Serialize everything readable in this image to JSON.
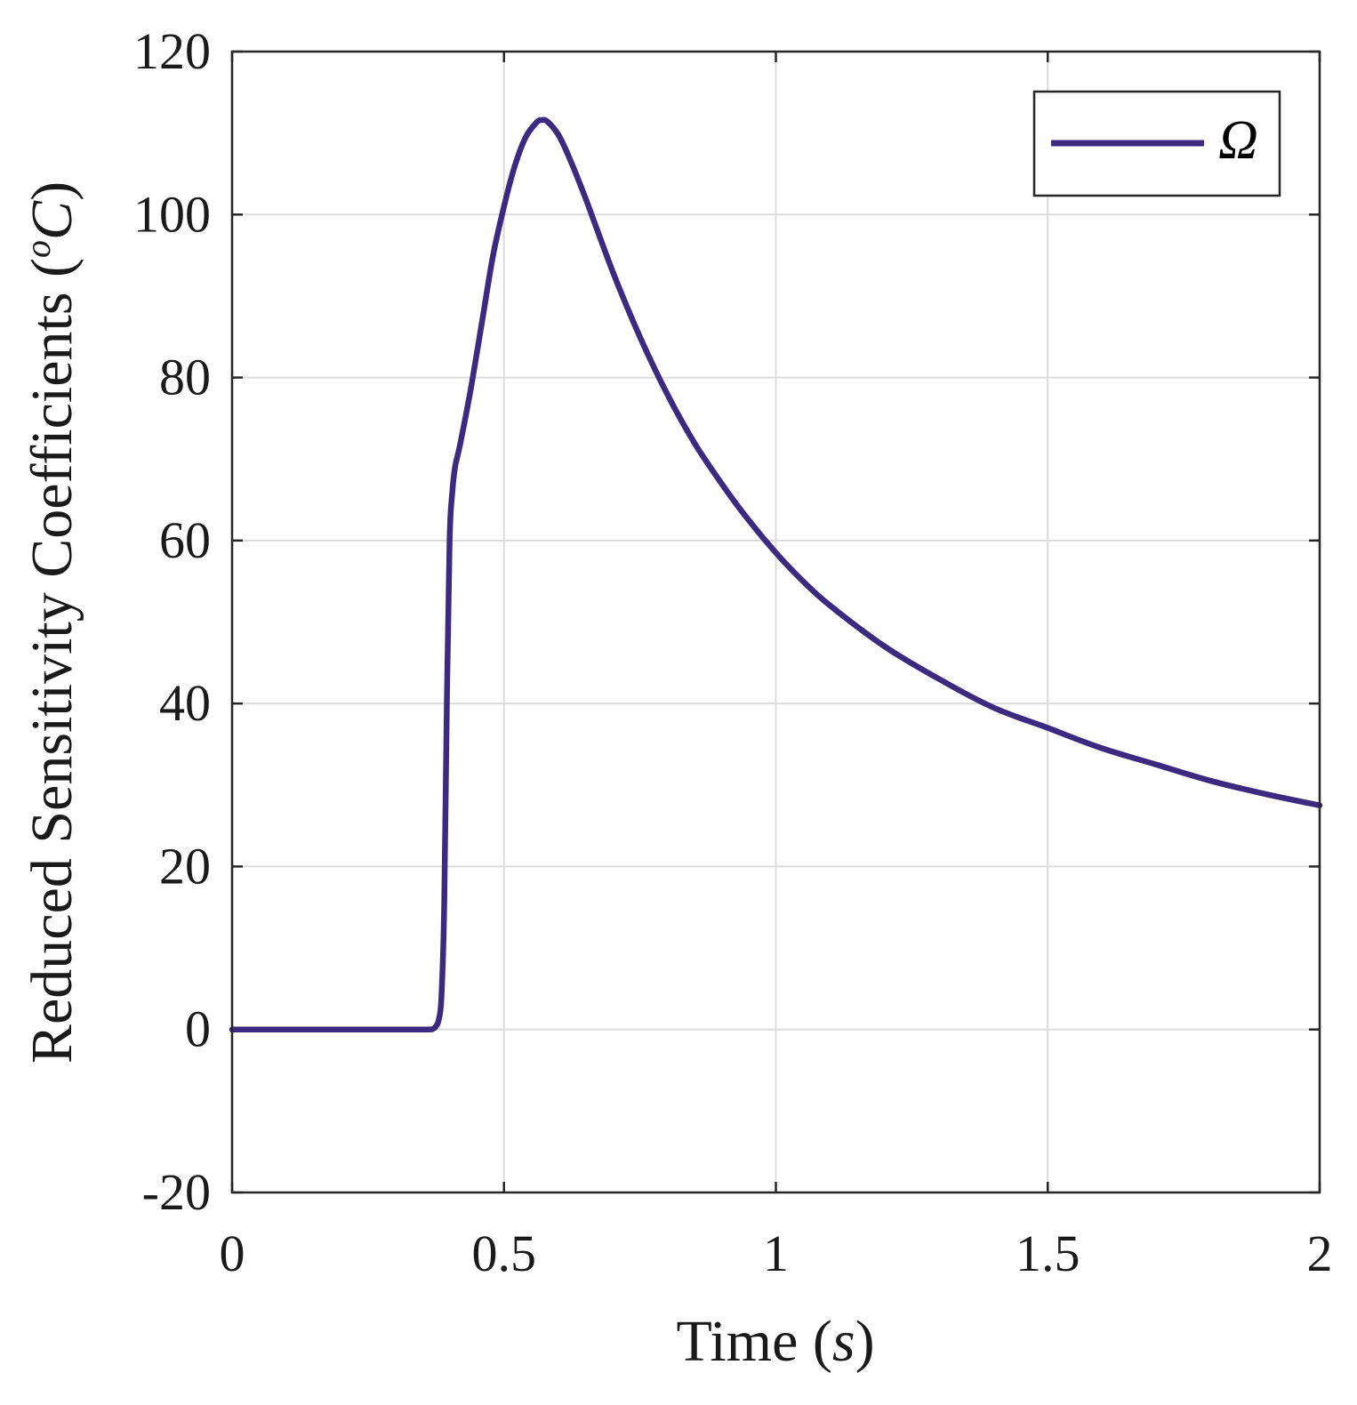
{
  "chart_data": {
    "type": "line",
    "title": "",
    "xlabel": "Time",
    "xlabel_unit": "s",
    "ylabel": "Reduced Sensitivity Coefficients",
    "ylabel_unit_degree": "o",
    "ylabel_unit_letter": "C",
    "xlim": [
      0,
      2
    ],
    "ylim": [
      -20,
      120
    ],
    "x_ticks": [
      0,
      0.5,
      1,
      1.5,
      2
    ],
    "x_tick_labels": [
      "0",
      "0.5",
      "1",
      "1.5",
      "2"
    ],
    "y_ticks": [
      -20,
      0,
      20,
      40,
      60,
      80,
      100,
      120
    ],
    "y_tick_labels": [
      "-20",
      "0",
      "20",
      "40",
      "60",
      "80",
      "100",
      "120"
    ],
    "grid": true,
    "legend_position": "top-right",
    "series": [
      {
        "name": "Ω",
        "color": "#3b2a80",
        "x": [
          0,
          0.1,
          0.2,
          0.3,
          0.36,
          0.37,
          0.375,
          0.38,
          0.385,
          0.39,
          0.395,
          0.4,
          0.405,
          0.41,
          0.42,
          0.44,
          0.46,
          0.48,
          0.5,
          0.52,
          0.54,
          0.56,
          0.57,
          0.58,
          0.6,
          0.62,
          0.65,
          0.7,
          0.75,
          0.8,
          0.85,
          0.9,
          0.95,
          1.0,
          1.05,
          1.1,
          1.2,
          1.3,
          1.4,
          1.5,
          1.6,
          1.7,
          1.8,
          1.9,
          2.0
        ],
        "y": [
          0,
          0,
          0,
          0,
          0,
          0.1,
          0.4,
          1.2,
          4,
          15,
          40,
          60,
          66,
          69,
          72,
          79,
          87,
          95,
          101,
          106,
          109.5,
          111.3,
          111.6,
          111.4,
          109.8,
          107,
          102,
          93,
          85,
          78,
          72,
          67,
          62.5,
          58.5,
          55,
          52,
          47,
          43,
          39.5,
          37,
          34.5,
          32.5,
          30.5,
          28.9,
          27.5
        ]
      }
    ]
  }
}
